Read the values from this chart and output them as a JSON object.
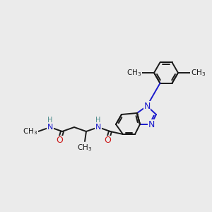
{
  "background_color": "#ebebeb",
  "bond_color": "#1a1a1a",
  "n_color": "#1a1acc",
  "o_color": "#cc1a1a",
  "nh_color": "#4a8a8a",
  "font_size_N": 9,
  "font_size_O": 9,
  "font_size_NH": 8,
  "font_size_CH3": 7.5,
  "font_size_me": 8,
  "line_width": 1.4,
  "figsize": [
    3.0,
    3.0
  ],
  "dpi": 100,
  "xlim": [
    0,
    300
  ],
  "ylim": [
    0,
    300
  ]
}
